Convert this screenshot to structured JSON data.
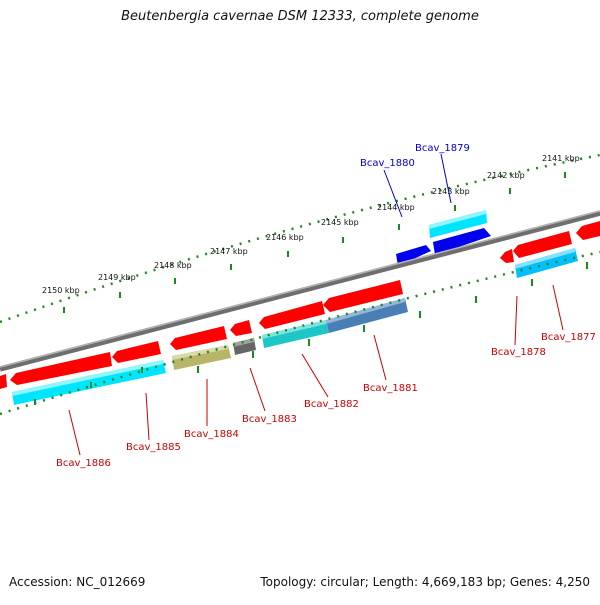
{
  "title": "Beutenbergia cavernae DSM 12333, complete genome",
  "accession": "Accession: NC_012669",
  "summary": "Topology: circular; Length: 4,669,183 bp; Genes: 4,250",
  "kbp_labels": [
    "2150 kbp",
    "2149 kbp",
    "2148 kbp",
    "2147 kbp",
    "2146 kbp",
    "2145 kbp",
    "2144 kbp",
    "2143 kbp",
    "2142 kbp",
    "2141 kbp"
  ],
  "colors": {
    "backbone": "#808080",
    "tick": "#1a8c1a",
    "forward_gene": "#ff0000",
    "forward_label": "#0000cc",
    "reverse_label": "#cc0000",
    "cog_cyan": "#00e5ff",
    "cog_blue": "#0000ee",
    "cog_olive": "#b8b46a",
    "cog_grey": "#666666",
    "cog_steel": "#4a7fb5"
  },
  "forward_labels": [
    "Bcav_1880",
    "Bcav_1879"
  ],
  "reverse_labels": [
    "Bcav_1886",
    "Bcav_1885",
    "Bcav_1884",
    "Bcav_1883",
    "Bcav_1882",
    "Bcav_1881",
    "Bcav_1878",
    "Bcav_1877"
  ]
}
